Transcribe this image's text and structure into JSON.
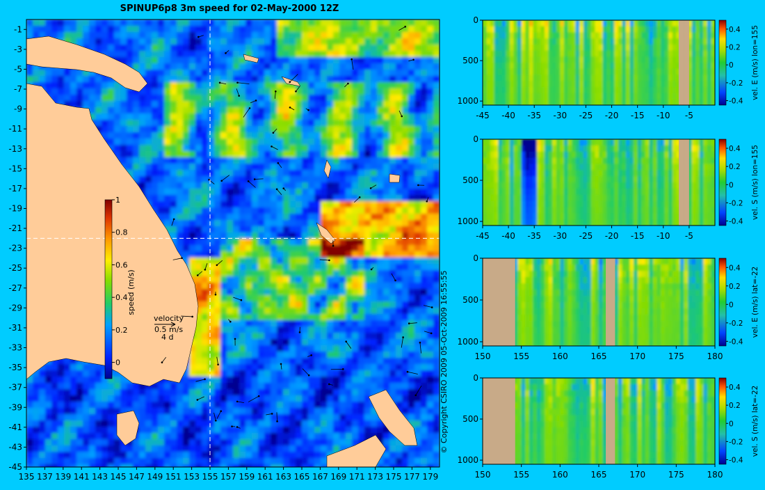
{
  "title": "SPINUP6p8 3m speed for 02-May-2000 12Z",
  "copyright": "© Copyright CSIRO 2009   05-Oct-2009 16:55:55",
  "colors": {
    "background": "#00ccff",
    "land": "#ffcc99",
    "section_land": "#c8aa88",
    "crosshair": "#ffffff"
  },
  "map": {
    "lon_ticks": [
      135,
      137,
      139,
      141,
      143,
      145,
      147,
      149,
      151,
      153,
      155,
      157,
      159,
      161,
      163,
      165,
      167,
      169,
      171,
      173,
      175,
      177,
      179
    ],
    "lat_ticks": [
      -1,
      -3,
      -5,
      -7,
      -9,
      -11,
      -13,
      -15,
      -17,
      -19,
      -21,
      -23,
      -25,
      -27,
      -29,
      -31,
      -33,
      -35,
      -37,
      -39,
      -41,
      -43,
      -45
    ],
    "lon_range": [
      135,
      180
    ],
    "lat_range": [
      -45,
      0
    ],
    "crosshair_lon": 155,
    "crosshair_lat": -22,
    "colorbar": {
      "label": "speed (m/s)",
      "ticks": [
        "1",
        "0.8",
        "0.6",
        "0.4",
        "0.2",
        "0"
      ],
      "tick_values": [
        1,
        0.8,
        0.6,
        0.4,
        0.2,
        0
      ],
      "range": [
        -0.1,
        1
      ]
    },
    "velocity_key": {
      "label": "velocity",
      "speed": "0.5 m/s",
      "duration": "4 d"
    }
  },
  "chart_data": [
    {
      "type": "heatmap",
      "title": "SPINUP6p8 3m speed for 02-May-2000 12Z",
      "variable": "speed (m/s)",
      "xlim": [
        135,
        180
      ],
      "ylim": [
        -45,
        0
      ],
      "color_range": [
        -0.1,
        1
      ]
    },
    {
      "type": "heatmap",
      "ylabel": "vel. E (m/s) lon=155",
      "x_ticks": [
        "-45",
        "-40",
        "-35",
        "-30",
        "-25",
        "-20",
        "-15",
        "-10",
        "-5"
      ],
      "x_tick_values": [
        -45,
        -40,
        -35,
        -30,
        -25,
        -20,
        -15,
        -10,
        -5
      ],
      "y_ticks": [
        "0",
        "500",
        "1000"
      ],
      "y_tick_values": [
        0,
        500,
        1000
      ],
      "xlim": [
        -45,
        0
      ],
      "ylim": [
        0,
        1050
      ],
      "colorbar_ticks": [
        "0.4",
        "0.2",
        "0",
        "-0.2",
        "-0.4"
      ],
      "colorbar_values": [
        0.4,
        0.2,
        0,
        -0.2,
        -0.4
      ],
      "color_range": [
        -0.45,
        0.5
      ]
    },
    {
      "type": "heatmap",
      "ylabel": "vel. S (m/s) lon=155",
      "x_ticks": [
        "-45",
        "-40",
        "-35",
        "-30",
        "-25",
        "-20",
        "-15",
        "-10",
        "-5"
      ],
      "x_tick_values": [
        -45,
        -40,
        -35,
        -30,
        -25,
        -20,
        -15,
        -10,
        -5
      ],
      "y_ticks": [
        "0",
        "500",
        "1000"
      ],
      "y_tick_values": [
        0,
        500,
        1000
      ],
      "xlim": [
        -45,
        0
      ],
      "ylim": [
        0,
        1050
      ],
      "colorbar_ticks": [
        "0.4",
        "0.2",
        "0",
        "-0.2",
        "-0.4"
      ],
      "colorbar_values": [
        0.4,
        0.2,
        0,
        -0.2,
        -0.4
      ],
      "color_range": [
        -0.45,
        0.5
      ]
    },
    {
      "type": "heatmap",
      "ylabel": "vel. E (m/s) lat=-22",
      "x_ticks": [
        "150",
        "155",
        "160",
        "165",
        "170",
        "175",
        "180"
      ],
      "x_tick_values": [
        150,
        155,
        160,
        165,
        170,
        175,
        180
      ],
      "y_ticks": [
        "0",
        "500",
        "1000"
      ],
      "y_tick_values": [
        0,
        500,
        1000
      ],
      "xlim": [
        150,
        180
      ],
      "ylim": [
        0,
        1050
      ],
      "colorbar_ticks": [
        "0.4",
        "0.2",
        "0",
        "-0.2",
        "-0.4"
      ],
      "colorbar_values": [
        0.4,
        0.2,
        0,
        -0.2,
        -0.4
      ],
      "color_range": [
        -0.45,
        0.5
      ]
    },
    {
      "type": "heatmap",
      "ylabel": "vel. S (m/s) lat=-22",
      "x_ticks": [
        "150",
        "155",
        "160",
        "165",
        "170",
        "175",
        "180"
      ],
      "x_tick_values": [
        150,
        155,
        160,
        165,
        170,
        175,
        180
      ],
      "y_ticks": [
        "0",
        "500",
        "1000"
      ],
      "y_tick_values": [
        0,
        500,
        1000
      ],
      "xlim": [
        150,
        180
      ],
      "ylim": [
        0,
        1050
      ],
      "colorbar_ticks": [
        "0.4",
        "0.2",
        "0",
        "-0.2",
        "-0.4"
      ],
      "colorbar_values": [
        0.4,
        0.2,
        0,
        -0.2,
        -0.4
      ],
      "color_range": [
        -0.45,
        0.5
      ]
    }
  ]
}
